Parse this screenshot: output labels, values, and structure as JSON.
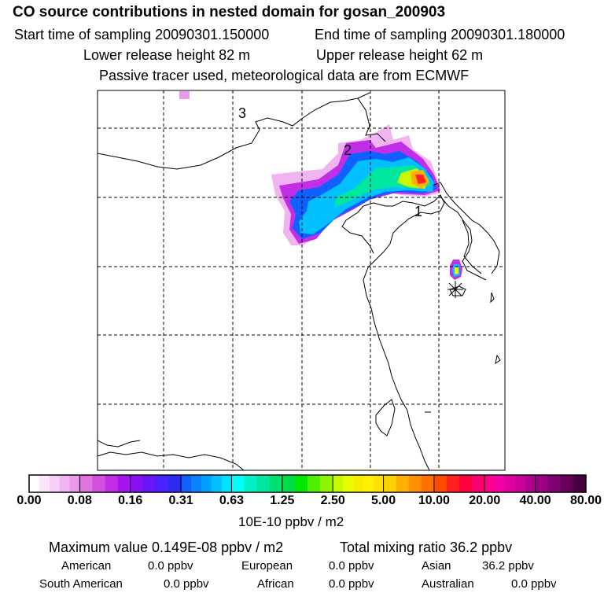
{
  "header": {
    "title": "CO  source contributions in nested domain for gosan_200903",
    "start_time": "Start time of sampling 20090301.150000",
    "end_time": "End time of sampling 20090301.180000",
    "lower_release": "Lower release height   82 m",
    "upper_release": "Upper release height   62 m",
    "tracer_note": "Passive tracer used, meteorological data are from ECMWF"
  },
  "chart_data": {
    "type": "heatmap",
    "title": "CO  source contributions in nested domain for gosan_200903",
    "region_labels": [
      "1",
      "2",
      "3"
    ],
    "colorbar": {
      "ticks": [
        "0.00",
        "0.08",
        "0.16",
        "0.31",
        "0.63",
        "1.25",
        "2.50",
        "5.00",
        "10.00",
        "20.00",
        "40.00",
        "80.00"
      ],
      "unit": "10E-10 ppbv / m2",
      "colors": [
        [
          "#ffffff",
          "#fbe6fb",
          "#f6cef6",
          "#f0b4f0",
          "#e99ae9"
        ],
        [
          "#de72de",
          "#d24fdf",
          "#c22ee8",
          "#a814f0"
        ],
        [
          "#8a10f4",
          "#6a14f8",
          "#4a20fc",
          "#2e2cf2"
        ],
        [
          "#1060ff",
          "#0a82ff",
          "#00a0ff",
          "#00c0ff",
          "#00e0ff"
        ],
        [
          "#00fff6",
          "#00f0c8",
          "#00e8a0",
          "#00e070"
        ],
        [
          "#00dc46",
          "#00e800",
          "#4ef000",
          "#90f400"
        ],
        [
          "#c8f800",
          "#e8fc00",
          "#f8ec00",
          "#fff000",
          "#ffe000"
        ],
        [
          "#ffd000",
          "#ffb000",
          "#ff9000",
          "#ff7000"
        ],
        [
          "#ff4a00",
          "#ff2020",
          "#ff0040",
          "#ff0070"
        ],
        [
          "#ff0090",
          "#f400a8",
          "#e000a0",
          "#cc0098",
          "#b00090"
        ],
        [
          "#9c0084",
          "#800070",
          "#640058",
          "#460040"
        ]
      ]
    },
    "max_value": 1.49e-09,
    "total_mixing_ratio": 36.2,
    "contributions": {
      "American": 0.0,
      "European": 0.0,
      "Asian": 36.2,
      "South American": 0.0,
      "African": 0.0,
      "Australian": 0.0
    }
  },
  "footer": {
    "max_label": "Maximum value  0.149E-08 ppbv / m2",
    "total_label": "Total mixing ratio       36.2 ppbv",
    "sources": [
      {
        "name": "American",
        "value": "0.0 ppbv"
      },
      {
        "name": "European",
        "value": "0.0 ppbv"
      },
      {
        "name": "Asian",
        "value": "36.2 ppbv"
      },
      {
        "name": "South American",
        "value": "0.0 ppbv"
      },
      {
        "name": "African",
        "value": "0.0 ppbv"
      },
      {
        "name": "Australian",
        "value": "0.0 ppbv"
      }
    ]
  }
}
